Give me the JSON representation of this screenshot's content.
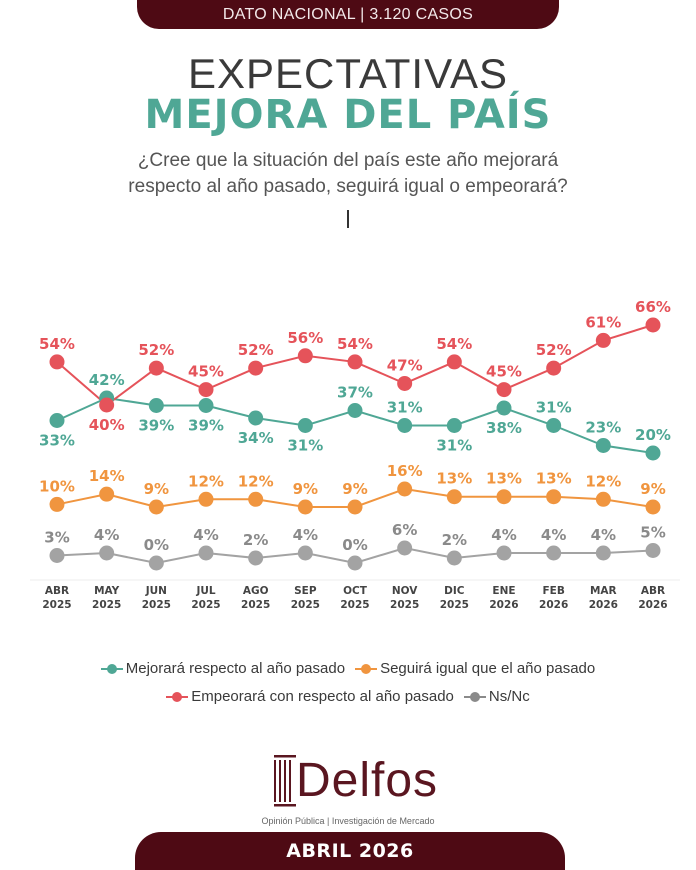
{
  "header": {
    "banner": "DATO NACIONAL | 3.120 CASOS",
    "title_light": "EXPECTATIVAS",
    "title_bold": "MEJORA DEL PAÍS",
    "question_line1": "¿Cree que la situación del país este año mejorará",
    "question_line2": "respecto al año pasado, seguirá igual o empeorará?"
  },
  "colors": {
    "brand": "#4e0a14",
    "mejorara": "#4fa795",
    "seguira": "#f0953f",
    "empeorara": "#e5535a",
    "nsnc": "#a3a3a3"
  },
  "chart_data": {
    "type": "line",
    "title": "EXPECTATIVAS MEJORA DEL PAÍS",
    "xlabel": "",
    "ylabel": "",
    "ylim": [
      0,
      70
    ],
    "grid": false,
    "legend_position": "bottom",
    "categories": [
      [
        "ABR",
        "2025"
      ],
      [
        "MAY",
        "2025"
      ],
      [
        "JUN",
        "2025"
      ],
      [
        "JUL",
        "2025"
      ],
      [
        "AGO",
        "2025"
      ],
      [
        "SEP",
        "2025"
      ],
      [
        "OCT",
        "2025"
      ],
      [
        "NOV",
        "2025"
      ],
      [
        "DIC",
        "2025"
      ],
      [
        "ENE",
        "2026"
      ],
      [
        "FEB",
        "2026"
      ],
      [
        "MAR",
        "2026"
      ],
      [
        "ABR",
        "2026"
      ]
    ],
    "series": [
      {
        "name": "Mejorará respecto al año pasado",
        "key": "mejorara",
        "color": "#4fa795",
        "values": [
          33,
          42,
          39,
          39,
          34,
          31,
          37,
          31,
          31,
          38,
          31,
          23,
          20
        ],
        "label_pos": [
          "below",
          "above",
          "below",
          "below",
          "below",
          "below",
          "above",
          "above",
          "below",
          "below",
          "above",
          "above",
          "above"
        ]
      },
      {
        "name": "Seguirá igual que el año pasado",
        "key": "seguira",
        "color": "#f0953f",
        "values": [
          10,
          14,
          9,
          12,
          12,
          9,
          9,
          16,
          13,
          13,
          13,
          12,
          9
        ],
        "label_pos": [
          "above",
          "above",
          "above",
          "above",
          "above",
          "above",
          "above",
          "above",
          "above",
          "above",
          "above",
          "above",
          "above"
        ]
      },
      {
        "name": "Empeorará con respecto al año pasado",
        "key": "empeorara",
        "color": "#e5535a",
        "values": [
          54,
          40,
          52,
          45,
          52,
          56,
          54,
          47,
          54,
          45,
          52,
          61,
          66
        ],
        "label_pos": [
          "above",
          "below",
          "above",
          "above",
          "above",
          "above",
          "above",
          "above",
          "above",
          "above",
          "above",
          "above",
          "above"
        ]
      },
      {
        "name": "Ns/Nc",
        "key": "nsnc",
        "color": "#a3a3a3",
        "values": [
          3,
          4,
          0,
          4,
          2,
          4,
          0,
          6,
          2,
          4,
          4,
          4,
          5
        ],
        "label_pos": [
          "above",
          "above",
          "above",
          "above",
          "above",
          "above",
          "above",
          "above",
          "above",
          "above",
          "above",
          "above",
          "above"
        ]
      }
    ]
  },
  "legend": [
    {
      "label": "Mejorará respecto al año pasado",
      "color": "#4fa795"
    },
    {
      "label": "Seguirá igual que el año pasado",
      "color": "#f0953f"
    },
    {
      "label": "Empeorará con respecto al año pasado",
      "color": "#e5535a"
    },
    {
      "label": "Ns/Nc",
      "color": "#8a8a8a"
    }
  ],
  "footer": {
    "logo_text": "Delfos",
    "tagline": "Opinión Pública | Investigación de Mercado",
    "date_banner": "ABRIL 2026"
  }
}
